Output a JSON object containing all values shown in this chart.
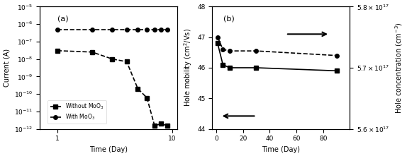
{
  "panel_a": {
    "without_moo3_x": [
      1,
      2,
      3,
      4,
      5,
      6,
      7,
      8,
      9
    ],
    "without_moo3_y": [
      3e-08,
      2.5e-08,
      1e-08,
      7e-09,
      2e-10,
      6e-11,
      1.5e-12,
      2e-12,
      1.5e-12
    ],
    "with_moo3_x": [
      1,
      2,
      3,
      4,
      5,
      6,
      7,
      8,
      9
    ],
    "with_moo3_y": [
      5e-07,
      5e-07,
      5e-07,
      5e-07,
      5e-07,
      5e-07,
      5e-07,
      5e-07,
      5e-07
    ],
    "xlabel": "Time (Day)",
    "ylabel": "Current (A)",
    "label": "(a)",
    "ylim": [
      1e-12,
      1e-05
    ],
    "xlim": [
      0.7,
      11
    ]
  },
  "panel_b": {
    "mobility_x": [
      1,
      5,
      10,
      30,
      90
    ],
    "mobility_y": [
      47.0,
      46.6,
      46.55,
      46.55,
      46.4
    ],
    "concentration_x": [
      1,
      5,
      10,
      30,
      90
    ],
    "concentration_y": [
      5.74e+17,
      5.705e+17,
      5.7e+17,
      5.7e+17,
      5.695e+17
    ],
    "xlabel": "Time (Day)",
    "ylabel": "Hole mobility (cm$^2$/Vs)",
    "ylabel_right": "Hole concentration (cm$^{-3}$)",
    "label": "(b)",
    "ylim_left": [
      44,
      48
    ],
    "ylim_right": [
      5.6e+17,
      5.8e+17
    ],
    "xlim": [
      -3,
      100
    ],
    "xticks": [
      0,
      20,
      40,
      60,
      80
    ],
    "yticks_left": [
      44,
      45,
      46,
      47,
      48
    ]
  },
  "color": "black",
  "marker_square": "s",
  "marker_circle": "o",
  "linewidth": 1.2,
  "markersize": 4
}
